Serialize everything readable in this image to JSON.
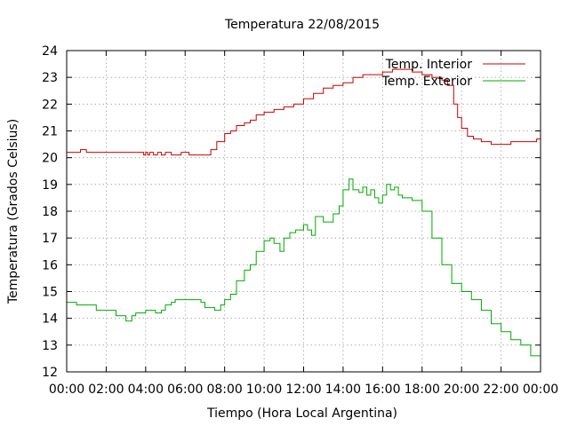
{
  "chart_data": {
    "type": "line",
    "title": "Temperatura 22/08/2015",
    "xlabel": "Tiempo (Hora Local Argentina)",
    "ylabel": "Temperatura (Grados Celsius)",
    "xlim": [
      0,
      24
    ],
    "ylim": [
      12,
      24
    ],
    "x_tick_labels": [
      "00:00",
      "02:00",
      "04:00",
      "06:00",
      "08:00",
      "10:00",
      "12:00",
      "14:00",
      "16:00",
      "18:00",
      "20:00",
      "22:00",
      "00:00"
    ],
    "y_tick_labels": [
      "12",
      "13",
      "14",
      "15",
      "16",
      "17",
      "18",
      "19",
      "20",
      "21",
      "22",
      "23",
      "24"
    ],
    "grid": true,
    "legend_position": "top-right",
    "series": [
      {
        "name": "Temp. Interior",
        "color": "#cc0000",
        "x": [
          0,
          0.6,
          0.7,
          0.9,
          1.0,
          3.8,
          3.9,
          4.0,
          4.1,
          4.2,
          4.4,
          4.6,
          4.8,
          5.0,
          5.3,
          5.5,
          5.8,
          6.2,
          7.0,
          7.3,
          7.6,
          8.0,
          8.3,
          8.6,
          9.0,
          9.3,
          9.6,
          10.0,
          10.5,
          11.0,
          11.5,
          12.0,
          12.5,
          13.0,
          13.5,
          14.0,
          14.5,
          15.0,
          16.0,
          16.5,
          17.0,
          17.5,
          18.0,
          18.5,
          19.0,
          19.3,
          19.6,
          19.8,
          20.0,
          20.3,
          20.6,
          21.0,
          21.5,
          22.0,
          22.5,
          23.0,
          23.5,
          23.8,
          24.0
        ],
        "y": [
          20.2,
          20.2,
          20.3,
          20.3,
          20.2,
          20.2,
          20.1,
          20.2,
          20.1,
          20.2,
          20.1,
          20.2,
          20.1,
          20.2,
          20.1,
          20.1,
          20.2,
          20.1,
          20.1,
          20.3,
          20.6,
          20.9,
          21.0,
          21.2,
          21.3,
          21.4,
          21.6,
          21.7,
          21.8,
          21.9,
          22.0,
          22.2,
          22.4,
          22.6,
          22.7,
          22.8,
          23.0,
          23.1,
          23.2,
          23.3,
          23.3,
          23.2,
          23.1,
          23.0,
          22.9,
          22.7,
          22.0,
          21.5,
          21.1,
          20.8,
          20.7,
          20.6,
          20.5,
          20.5,
          20.6,
          20.6,
          20.6,
          20.7,
          20.8
        ]
      },
      {
        "name": "Temp. Exterior",
        "color": "#00aa00",
        "x": [
          0,
          0.5,
          1.0,
          1.5,
          2.0,
          2.5,
          2.8,
          3.0,
          3.3,
          3.5,
          4.0,
          4.5,
          4.8,
          5.0,
          5.3,
          5.5,
          5.8,
          6.0,
          6.5,
          6.8,
          7.0,
          7.5,
          7.8,
          8.0,
          8.3,
          8.6,
          9.0,
          9.3,
          9.6,
          10.0,
          10.3,
          10.5,
          10.8,
          11.0,
          11.3,
          11.6,
          12.0,
          12.2,
          12.4,
          12.6,
          13.0,
          13.5,
          13.8,
          14.0,
          14.3,
          14.5,
          14.8,
          15.0,
          15.2,
          15.4,
          15.6,
          15.8,
          16.0,
          16.2,
          16.4,
          16.6,
          16.8,
          17.0,
          17.5,
          18.0,
          18.5,
          19.0,
          19.5,
          20.0,
          20.5,
          21.0,
          21.5,
          22.0,
          22.5,
          23.0,
          23.5,
          24.0
        ],
        "y": [
          14.6,
          14.5,
          14.5,
          14.3,
          14.3,
          14.1,
          14.1,
          13.9,
          14.1,
          14.2,
          14.3,
          14.2,
          14.3,
          14.5,
          14.6,
          14.7,
          14.7,
          14.7,
          14.7,
          14.6,
          14.4,
          14.3,
          14.5,
          14.7,
          14.9,
          15.4,
          15.8,
          16.0,
          16.5,
          16.9,
          17.0,
          16.8,
          16.5,
          17.0,
          17.2,
          17.3,
          17.5,
          17.3,
          17.1,
          17.8,
          17.6,
          17.9,
          18.2,
          18.8,
          19.2,
          18.8,
          18.7,
          18.9,
          18.6,
          18.8,
          18.5,
          18.3,
          18.6,
          19.0,
          18.8,
          18.9,
          18.6,
          18.5,
          18.4,
          18.0,
          17.0,
          16.0,
          15.3,
          15.0,
          14.7,
          14.3,
          13.8,
          13.5,
          13.2,
          13.0,
          12.6,
          12.2
        ]
      }
    ]
  }
}
